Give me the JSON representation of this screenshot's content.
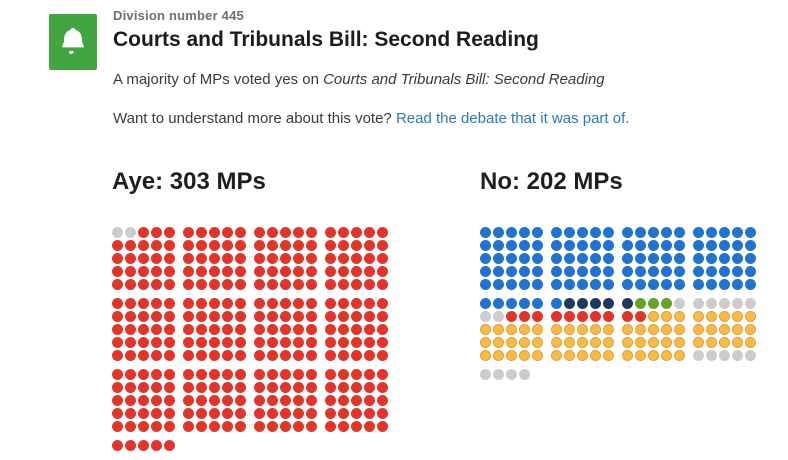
{
  "header": {
    "icon": "bell-icon",
    "icon_bg": "#42a542",
    "division_label": "Division number 445",
    "title": "Courts and Tribunals Bill: Second Reading",
    "summary_prefix": "A majority of MPs voted yes on ",
    "summary_italic": "Courts and Tribunals Bill: Second Reading",
    "prompt_text": "Want to understand more about this vote? ",
    "link_text": "Read the debate that it was part of.",
    "link_color": "#2b7ab9"
  },
  "aye": {
    "heading": "Aye: 303 MPs",
    "count": 303,
    "blocks": [
      [
        "XXRRR",
        "RRRRR",
        "RRRRR",
        "RRRRR",
        "RRRRR"
      ],
      [
        "RRRRR",
        "RRRRR",
        "RRRRR",
        "RRRRR",
        "RRRRR"
      ],
      [
        "RRRRR",
        "RRRRR",
        "RRRRR",
        "RRRRR",
        "RRRRR"
      ],
      [
        "RRRRR",
        "RRRRR",
        "RRRRR",
        "RRRRR",
        "RRRRR"
      ],
      [
        "RRRRR",
        "RRRRR",
        "RRRRR",
        "RRRRR",
        "RRRRR"
      ],
      [
        "RRRRR",
        "RRRRR",
        "RRRRR",
        "RRRRR",
        "RRRRR"
      ],
      [
        "RRRRR",
        "RRRRR",
        "RRRRR",
        "RRRRR",
        "RRRRR"
      ],
      [
        "RRRRR",
        "RRRRR",
        "RRRRR",
        "RRRRR",
        "RRRRR"
      ],
      [
        "RRRRR",
        "RRRRR",
        "RRRRR",
        "RRRRR",
        "RRRRR"
      ],
      [
        "RRRRR",
        "RRRRR",
        "RRRRR",
        "RRRRR",
        "RRRRR"
      ],
      [
        "RRRRR",
        "RRRRR",
        "RRRRR",
        "RRRRR",
        "RRRRR"
      ],
      [
        "RRRRR",
        "RRRRR",
        "RRRRR",
        "RRRRR",
        "RRRRR"
      ],
      [
        "RRRRR"
      ]
    ]
  },
  "no": {
    "heading": "No: 202 MPs",
    "count": 202,
    "blocks": [
      [
        "BBBBB",
        "BBBBB",
        "BBBBB",
        "BBBBB",
        "BBBBB"
      ],
      [
        "BBBBB",
        "BBBBB",
        "BBBBB",
        "BBBBB",
        "BBBBB"
      ],
      [
        "BBBBB",
        "BBBBB",
        "BBBBB",
        "BBBBB",
        "BBBBB"
      ],
      [
        "BBBBB",
        "BBBBB",
        "BBBBB",
        "BBBBB",
        "BBBBB"
      ],
      [
        "BBBBB",
        "XXRRR",
        "YYYYY",
        "YYYYY",
        "YYYYY"
      ],
      [
        "BNNNN",
        "RRRRR",
        "YYYYY",
        "YYYYY",
        "YYYYY"
      ],
      [
        "NGGGX",
        "RRYYY",
        "YYYYY",
        "YYYYY",
        "YYYYY"
      ],
      [
        "XXXXX",
        "YYYYY",
        "YYYYY",
        "YYYYY",
        "XXXXX"
      ],
      [
        "XXXX"
      ]
    ]
  },
  "palette": {
    "R": "#e1342b",
    "B": "#2173d0",
    "N": "#1e395f",
    "G": "#61a427",
    "Y": "#f7bb49",
    "Yb": "#e79e35",
    "X": "#cccccc"
  },
  "dot_color_names": {
    "R": "red",
    "B": "blue",
    "N": "navy",
    "G": "green",
    "Y": "amber",
    "X": "gray"
  },
  "chart_data": [
    {
      "type": "waffle-unit-chart",
      "title": "Aye: 303 MPs",
      "total_mps": 303,
      "layout": "12 blocks of 5x5 dots in 4 columns x 3 rows, plus one final row of 5 dots",
      "dot_counts": {
        "red": 303,
        "gray": 2
      },
      "notes": "2 gray dots appear first (top-left), all remaining 303 dots are red"
    },
    {
      "type": "waffle-unit-chart",
      "title": "No: 202 MPs",
      "total_mps": 202,
      "layout": "8 blocks of 5x5 dots in 4 columns x 2 rows, plus one final row of 4 dots",
      "dot_counts": {
        "blue": 106,
        "navy": 5,
        "green": 3,
        "gray": 17,
        "red": 10,
        "amber": 63
      },
      "notes": "order reading across block rows: 106 blue, 5 navy, 3 green, 6 gray, 2 gray, 10 red, 63 amber, 9 gray"
    }
  ]
}
